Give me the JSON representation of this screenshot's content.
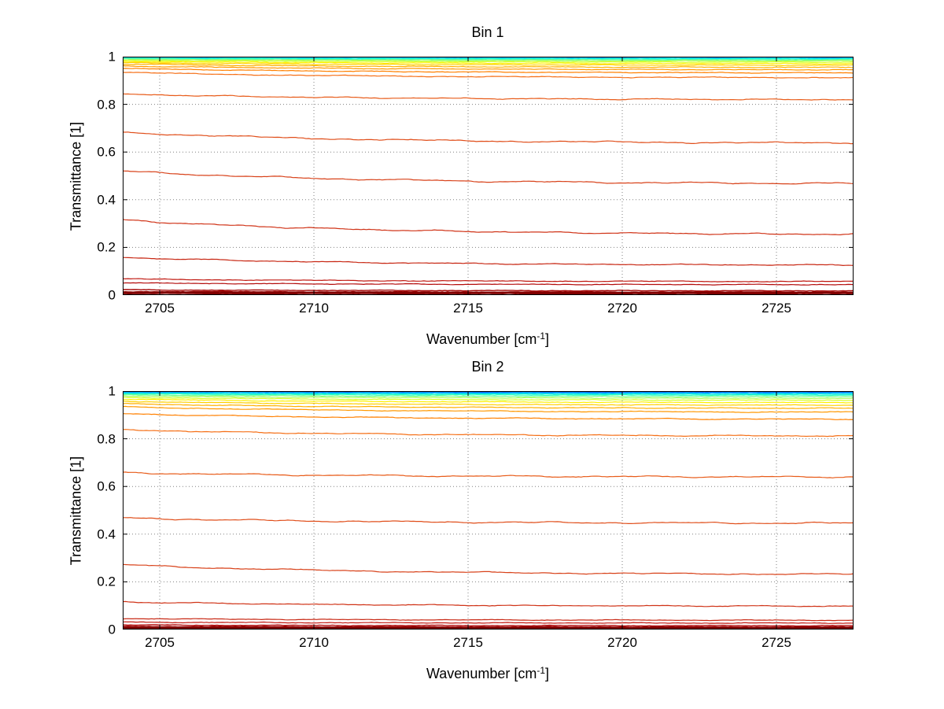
{
  "figure": {
    "background": "#ffffff",
    "grid_color": "#808080",
    "axis_color": "#000000"
  },
  "chart_data": [
    {
      "type": "line",
      "title": "Bin 1",
      "xlabel_parts": [
        "Wavenumber [cm",
        "-1",
        "]"
      ],
      "ylabel": "Transmittance [1]",
      "xlim": [
        2703.8,
        2727.5
      ],
      "ylim": [
        0,
        1
      ],
      "x_ticks": [
        "2705",
        "2710",
        "2715",
        "2720",
        "2725"
      ],
      "x_tick_values": [
        2705,
        2710,
        2715,
        2720,
        2725
      ],
      "y_ticks": [
        "0",
        "0.2",
        "0.4",
        "0.6",
        "0.8",
        "1"
      ],
      "y_tick_values": [
        0,
        0.2,
        0.4,
        0.6,
        0.8,
        1
      ],
      "grid": "dotted",
      "curve_model": "value(t) = right + (left-right)*exp(-3t), t from left edge to right edge",
      "series": [
        {
          "color": "#00008f",
          "start": 1.0,
          "end": 1.0,
          "width": 2
        },
        {
          "color": "#0000e8",
          "start": 0.999,
          "end": 0.999,
          "width": 1.2
        },
        {
          "color": "#0040ff",
          "start": 0.998,
          "end": 0.998,
          "width": 1.2
        },
        {
          "color": "#0080ff",
          "start": 0.997,
          "end": 0.996,
          "width": 1.2
        },
        {
          "color": "#00c0ff",
          "start": 0.996,
          "end": 0.994,
          "width": 1.2
        },
        {
          "color": "#00e8e0",
          "start": 0.994,
          "end": 0.992,
          "width": 1.2
        },
        {
          "color": "#30ffc0",
          "start": 0.992,
          "end": 0.989,
          "width": 1.2
        },
        {
          "color": "#70ff90",
          "start": 0.99,
          "end": 0.986,
          "width": 1.2
        },
        {
          "color": "#a8ff58",
          "start": 0.987,
          "end": 0.982,
          "width": 1.2
        },
        {
          "color": "#d8ff28",
          "start": 0.984,
          "end": 0.977,
          "width": 1.2
        },
        {
          "color": "#fff000",
          "start": 0.98,
          "end": 0.971,
          "width": 1.2
        },
        {
          "color": "#ffd000",
          "start": 0.975,
          "end": 0.964,
          "width": 1.2
        },
        {
          "color": "#ffb000",
          "start": 0.969,
          "end": 0.955,
          "width": 1.2
        },
        {
          "color": "#ff9800",
          "start": 0.961,
          "end": 0.945,
          "width": 1.2
        },
        {
          "color": "#ff8000",
          "start": 0.951,
          "end": 0.932,
          "width": 1.2
        },
        {
          "color": "#f57018",
          "start": 0.934,
          "end": 0.912,
          "width": 1.2
        },
        {
          "color": "#e85c1a",
          "start": 0.843,
          "end": 0.82,
          "width": 1.2
        },
        {
          "color": "#e04e1a",
          "start": 0.683,
          "end": 0.638,
          "width": 1.2
        },
        {
          "color": "#d8421a",
          "start": 0.52,
          "end": 0.468,
          "width": 1.2
        },
        {
          "color": "#d03418",
          "start": 0.315,
          "end": 0.255,
          "width": 1.2
        },
        {
          "color": "#c82814",
          "start": 0.158,
          "end": 0.126,
          "width": 1.2
        },
        {
          "color": "#c01810",
          "start": 0.068,
          "end": 0.057,
          "width": 1.2
        },
        {
          "color": "#b40c0c",
          "start": 0.051,
          "end": 0.044,
          "width": 1.2
        },
        {
          "color": "#a40404",
          "start": 0.022,
          "end": 0.018,
          "width": 1.4
        },
        {
          "color": "#940000",
          "start": 0.014,
          "end": 0.012,
          "width": 1.8
        },
        {
          "color": "#800000",
          "start": 0.009,
          "end": 0.008,
          "width": 3
        }
      ]
    },
    {
      "type": "line",
      "title": "Bin 2",
      "xlabel_parts": [
        "Wavenumber [cm",
        "-1",
        "]"
      ],
      "ylabel": "Transmittance [1]",
      "xlim": [
        2703.8,
        2727.5
      ],
      "ylim": [
        0,
        1
      ],
      "x_ticks": [
        "2705",
        "2710",
        "2715",
        "2720",
        "2725"
      ],
      "x_tick_values": [
        2705,
        2710,
        2715,
        2720,
        2725
      ],
      "y_ticks": [
        "0",
        "0.2",
        "0.4",
        "0.6",
        "0.8",
        "1"
      ],
      "y_tick_values": [
        0,
        0.2,
        0.4,
        0.6,
        0.8,
        1
      ],
      "grid": "dotted",
      "curve_model": "value(t) = right + (left-right)*exp(-3t), t from left edge to right edge",
      "series": [
        {
          "color": "#00008f",
          "start": 1.0,
          "end": 1.0,
          "width": 2
        },
        {
          "color": "#0000e8",
          "start": 0.999,
          "end": 0.998,
          "width": 1.2
        },
        {
          "color": "#0040ff",
          "start": 0.997,
          "end": 0.996,
          "width": 1.2
        },
        {
          "color": "#0080ff",
          "start": 0.996,
          "end": 0.994,
          "width": 1.2
        },
        {
          "color": "#00c0ff",
          "start": 0.994,
          "end": 0.991,
          "width": 1.2
        },
        {
          "color": "#00e8e0",
          "start": 0.991,
          "end": 0.987,
          "width": 1.2
        },
        {
          "color": "#30ffc0",
          "start": 0.988,
          "end": 0.983,
          "width": 1.2
        },
        {
          "color": "#70ff90",
          "start": 0.984,
          "end": 0.977,
          "width": 1.2
        },
        {
          "color": "#a8ff58",
          "start": 0.979,
          "end": 0.97,
          "width": 1.2
        },
        {
          "color": "#d8ff28",
          "start": 0.973,
          "end": 0.962,
          "width": 1.2
        },
        {
          "color": "#fff000",
          "start": 0.966,
          "end": 0.952,
          "width": 1.2
        },
        {
          "color": "#ffd000",
          "start": 0.957,
          "end": 0.941,
          "width": 1.2
        },
        {
          "color": "#ffb000",
          "start": 0.947,
          "end": 0.928,
          "width": 1.2
        },
        {
          "color": "#ff9800",
          "start": 0.934,
          "end": 0.912,
          "width": 1.2
        },
        {
          "color": "#ff8000",
          "start": 0.905,
          "end": 0.882,
          "width": 1.2
        },
        {
          "color": "#f57018",
          "start": 0.838,
          "end": 0.812,
          "width": 1.2
        },
        {
          "color": "#e85c1a",
          "start": 0.658,
          "end": 0.64,
          "width": 1.2
        },
        {
          "color": "#e04e1a",
          "start": 0.468,
          "end": 0.446,
          "width": 1.2
        },
        {
          "color": "#d8421a",
          "start": 0.272,
          "end": 0.232,
          "width": 1.2
        },
        {
          "color": "#d03418",
          "start": 0.116,
          "end": 0.098,
          "width": 1.2
        },
        {
          "color": "#c82814",
          "start": 0.046,
          "end": 0.039,
          "width": 1.2
        },
        {
          "color": "#c01810",
          "start": 0.031,
          "end": 0.027,
          "width": 1.2
        },
        {
          "color": "#b40c0c",
          "start": 0.019,
          "end": 0.016,
          "width": 1.4
        },
        {
          "color": "#940000",
          "start": 0.012,
          "end": 0.01,
          "width": 1.8
        },
        {
          "color": "#800000",
          "start": 0.007,
          "end": 0.006,
          "width": 3
        }
      ]
    }
  ]
}
